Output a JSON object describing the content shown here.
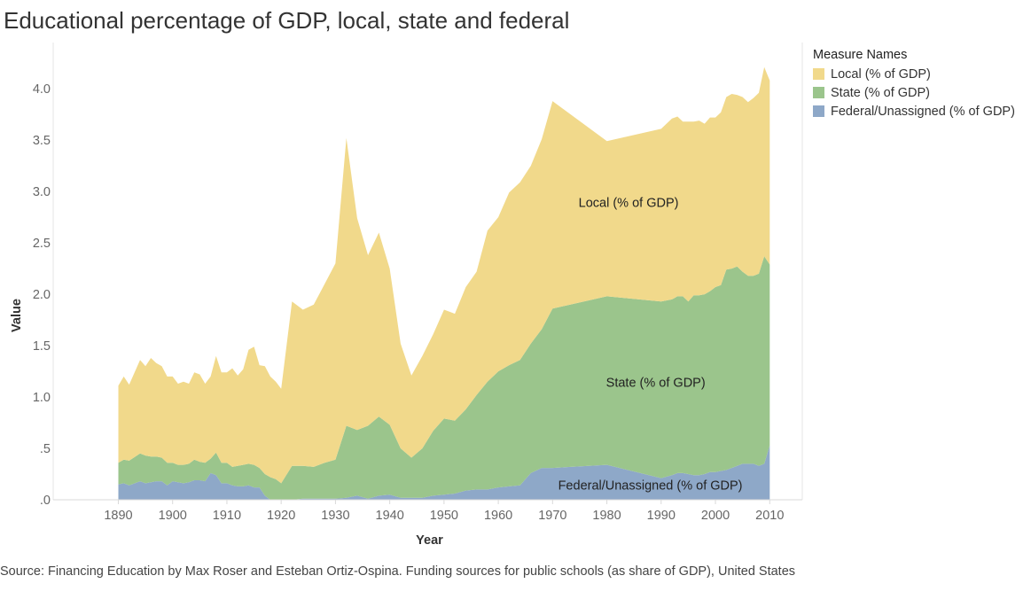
{
  "title": "Educational percentage of GDP, local, state and federal",
  "legend": {
    "title": "Measure Names",
    "items": [
      {
        "label": "Local (% of GDP)",
        "color": "#f1d98b"
      },
      {
        "label": "State (% of GDP)",
        "color": "#9bc58c"
      },
      {
        "label": "Federal/Unassigned (% of GDP)",
        "color": "#8ea8c8"
      }
    ]
  },
  "source": "Source: Financing Education by Max Roser and Esteban Ortiz-Ospina. Funding sources for public schools (as share of GDP), United States",
  "chart_data": {
    "type": "area",
    "stacked": true,
    "xlabel": "Year",
    "ylabel": "Value",
    "xlim": [
      1878,
      2016
    ],
    "ylim": [
      0,
      4.45
    ],
    "x_ticks": [
      1890,
      1900,
      1910,
      1920,
      1930,
      1940,
      1950,
      1960,
      1970,
      1980,
      1990,
      2000,
      2010
    ],
    "y_ticks": [
      0,
      0.5,
      1.0,
      1.5,
      2.0,
      2.5,
      3.0,
      3.5,
      4.0
    ],
    "y_tick_labels": [
      ".0",
      ".5",
      "1.0",
      "1.5",
      "2.0",
      "2.5",
      "3.0",
      "3.5",
      "4.0"
    ],
    "grid": false,
    "legend_position": "top-right",
    "x": [
      1890,
      1891,
      1892,
      1894,
      1895,
      1896,
      1897,
      1898,
      1899,
      1900,
      1901,
      1902,
      1903,
      1904,
      1905,
      1906,
      1907,
      1908,
      1909,
      1910,
      1911,
      1912,
      1913,
      1914,
      1915,
      1916,
      1917,
      1918,
      1919,
      1920,
      1922,
      1924,
      1926,
      1928,
      1930,
      1932,
      1934,
      1936,
      1938,
      1940,
      1942,
      1944,
      1946,
      1948,
      1950,
      1952,
      1954,
      1956,
      1958,
      1960,
      1962,
      1964,
      1966,
      1968,
      1970,
      1980,
      1990,
      1992,
      1993,
      1994,
      1995,
      1996,
      1997,
      1998,
      1999,
      2000,
      2001,
      2002,
      2003,
      2004,
      2005,
      2006,
      2007,
      2008,
      2009,
      2010
    ],
    "series": [
      {
        "name": "Federal/Unassigned (% of GDP)",
        "color": "#8ea8c8",
        "values": [
          0.15,
          0.16,
          0.14,
          0.18,
          0.16,
          0.17,
          0.18,
          0.18,
          0.14,
          0.18,
          0.17,
          0.16,
          0.17,
          0.19,
          0.19,
          0.18,
          0.26,
          0.24,
          0.16,
          0.16,
          0.14,
          0.13,
          0.13,
          0.14,
          0.12,
          0.12,
          0.04,
          0.0,
          0.0,
          0.0,
          0.0,
          0.01,
          0.01,
          0.01,
          0.01,
          0.02,
          0.04,
          0.01,
          0.04,
          0.05,
          0.02,
          0.02,
          0.02,
          0.04,
          0.05,
          0.06,
          0.09,
          0.1,
          0.1,
          0.12,
          0.13,
          0.14,
          0.26,
          0.31,
          0.31,
          0.34,
          0.21,
          0.24,
          0.26,
          0.26,
          0.25,
          0.24,
          0.24,
          0.25,
          0.27,
          0.27,
          0.28,
          0.29,
          0.31,
          0.33,
          0.35,
          0.35,
          0.35,
          0.33,
          0.35,
          0.53
        ]
      },
      {
        "name": "State (% of GDP)",
        "color": "#9bc58c",
        "values": [
          0.21,
          0.23,
          0.24,
          0.27,
          0.27,
          0.25,
          0.24,
          0.23,
          0.22,
          0.18,
          0.17,
          0.18,
          0.18,
          0.2,
          0.18,
          0.18,
          0.14,
          0.22,
          0.2,
          0.2,
          0.18,
          0.2,
          0.21,
          0.21,
          0.22,
          0.19,
          0.21,
          0.22,
          0.2,
          0.16,
          0.33,
          0.32,
          0.31,
          0.35,
          0.38,
          0.7,
          0.64,
          0.71,
          0.77,
          0.68,
          0.48,
          0.39,
          0.48,
          0.63,
          0.74,
          0.71,
          0.79,
          0.92,
          1.05,
          1.13,
          1.18,
          1.22,
          1.26,
          1.35,
          1.55,
          1.64,
          1.72,
          1.71,
          1.72,
          1.72,
          1.68,
          1.75,
          1.75,
          1.75,
          1.76,
          1.8,
          1.81,
          1.95,
          1.94,
          1.94,
          1.87,
          1.83,
          1.83,
          1.87,
          2.02,
          1.76
        ]
      },
      {
        "name": "Local (% of GDP)",
        "color": "#f1d98b",
        "values": [
          0.75,
          0.81,
          0.74,
          0.91,
          0.87,
          0.96,
          0.91,
          0.89,
          0.84,
          0.84,
          0.79,
          0.81,
          0.78,
          0.85,
          0.85,
          0.77,
          0.8,
          0.94,
          0.88,
          0.88,
          0.96,
          0.88,
          0.93,
          1.11,
          1.15,
          1.0,
          1.05,
          0.98,
          0.95,
          0.92,
          1.6,
          1.52,
          1.58,
          1.74,
          1.91,
          2.8,
          2.06,
          1.66,
          1.79,
          1.52,
          1.02,
          0.8,
          0.9,
          0.94,
          1.06,
          1.04,
          1.19,
          1.2,
          1.47,
          1.5,
          1.68,
          1.73,
          1.73,
          1.85,
          2.02,
          1.51,
          1.68,
          1.76,
          1.75,
          1.7,
          1.75,
          1.69,
          1.7,
          1.66,
          1.69,
          1.65,
          1.68,
          1.68,
          1.7,
          1.67,
          1.7,
          1.69,
          1.73,
          1.76,
          1.84,
          1.79
        ]
      }
    ],
    "annotations": [
      {
        "text": "Local (% of GDP)",
        "x": 1984,
        "y": 2.85
      },
      {
        "text": "State (% of GDP)",
        "x": 1989,
        "y": 1.1
      },
      {
        "text": "Federal/Unassigned (% of GDP)",
        "x": 1988,
        "y": 0.1
      }
    ]
  }
}
